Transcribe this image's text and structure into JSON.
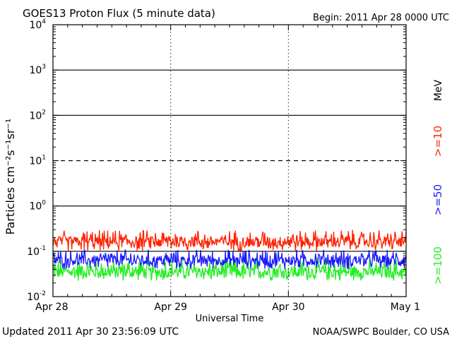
{
  "header": {
    "title": "GOES13 Proton Flux (5 minute data)",
    "begin": "Begin: 2011 Apr 28 0000 UTC"
  },
  "footer": {
    "updated": "Updated 2011 Apr 30 23:56:09 UTC",
    "credit": "NOAA/SWPC Boulder, CO USA"
  },
  "colors": {
    "ge10": "#ff2200",
    "ge50": "#1a1aff",
    "ge100": "#22ee22",
    "axis": "#000000",
    "background": "#ffffff"
  },
  "chart_data": {
    "type": "line",
    "title": "GOES13 Proton Flux (5 minute data)",
    "xlabel": "Universal Time",
    "ylabel": "Particles cm⁻²s⁻¹sr⁻¹",
    "yscale": "log",
    "ylim": [
      0.01,
      10000
    ],
    "xlim_days": [
      0,
      3
    ],
    "x_ticks": [
      "Apr 28",
      "Apr 29",
      "Apr 30",
      "May 1"
    ],
    "y_ticks": [
      {
        "base": "10",
        "exp": "-2",
        "value": 0.01
      },
      {
        "base": "10",
        "exp": "-1",
        "value": 0.1
      },
      {
        "base": "10",
        "exp": "0",
        "value": 1
      },
      {
        "base": "10",
        "exp": "1",
        "value": 10
      },
      {
        "base": "10",
        "exp": "2",
        "value": 100
      },
      {
        "base": "10",
        "exp": "3",
        "value": 1000
      },
      {
        "base": "10",
        "exp": "4",
        "value": 10000
      }
    ],
    "threshold_lines": [
      {
        "value": 0.1,
        "style": "solid"
      },
      {
        "value": 1,
        "style": "solid"
      },
      {
        "value": 10,
        "style": "dashed"
      },
      {
        "value": 100,
        "style": "solid"
      },
      {
        "value": 1000,
        "style": "solid"
      }
    ],
    "unit_label": "MeV",
    "series": [
      {
        "name": ">=10",
        "color": "#ff2200",
        "typical": 0.15,
        "range": [
          0.1,
          0.3
        ]
      },
      {
        "name": ">=50",
        "color": "#1a1aff",
        "typical": 0.06,
        "range": [
          0.04,
          0.11
        ]
      },
      {
        "name": ">=100",
        "color": "#22ee22",
        "typical": 0.03,
        "range": [
          0.022,
          0.07
        ]
      }
    ]
  }
}
